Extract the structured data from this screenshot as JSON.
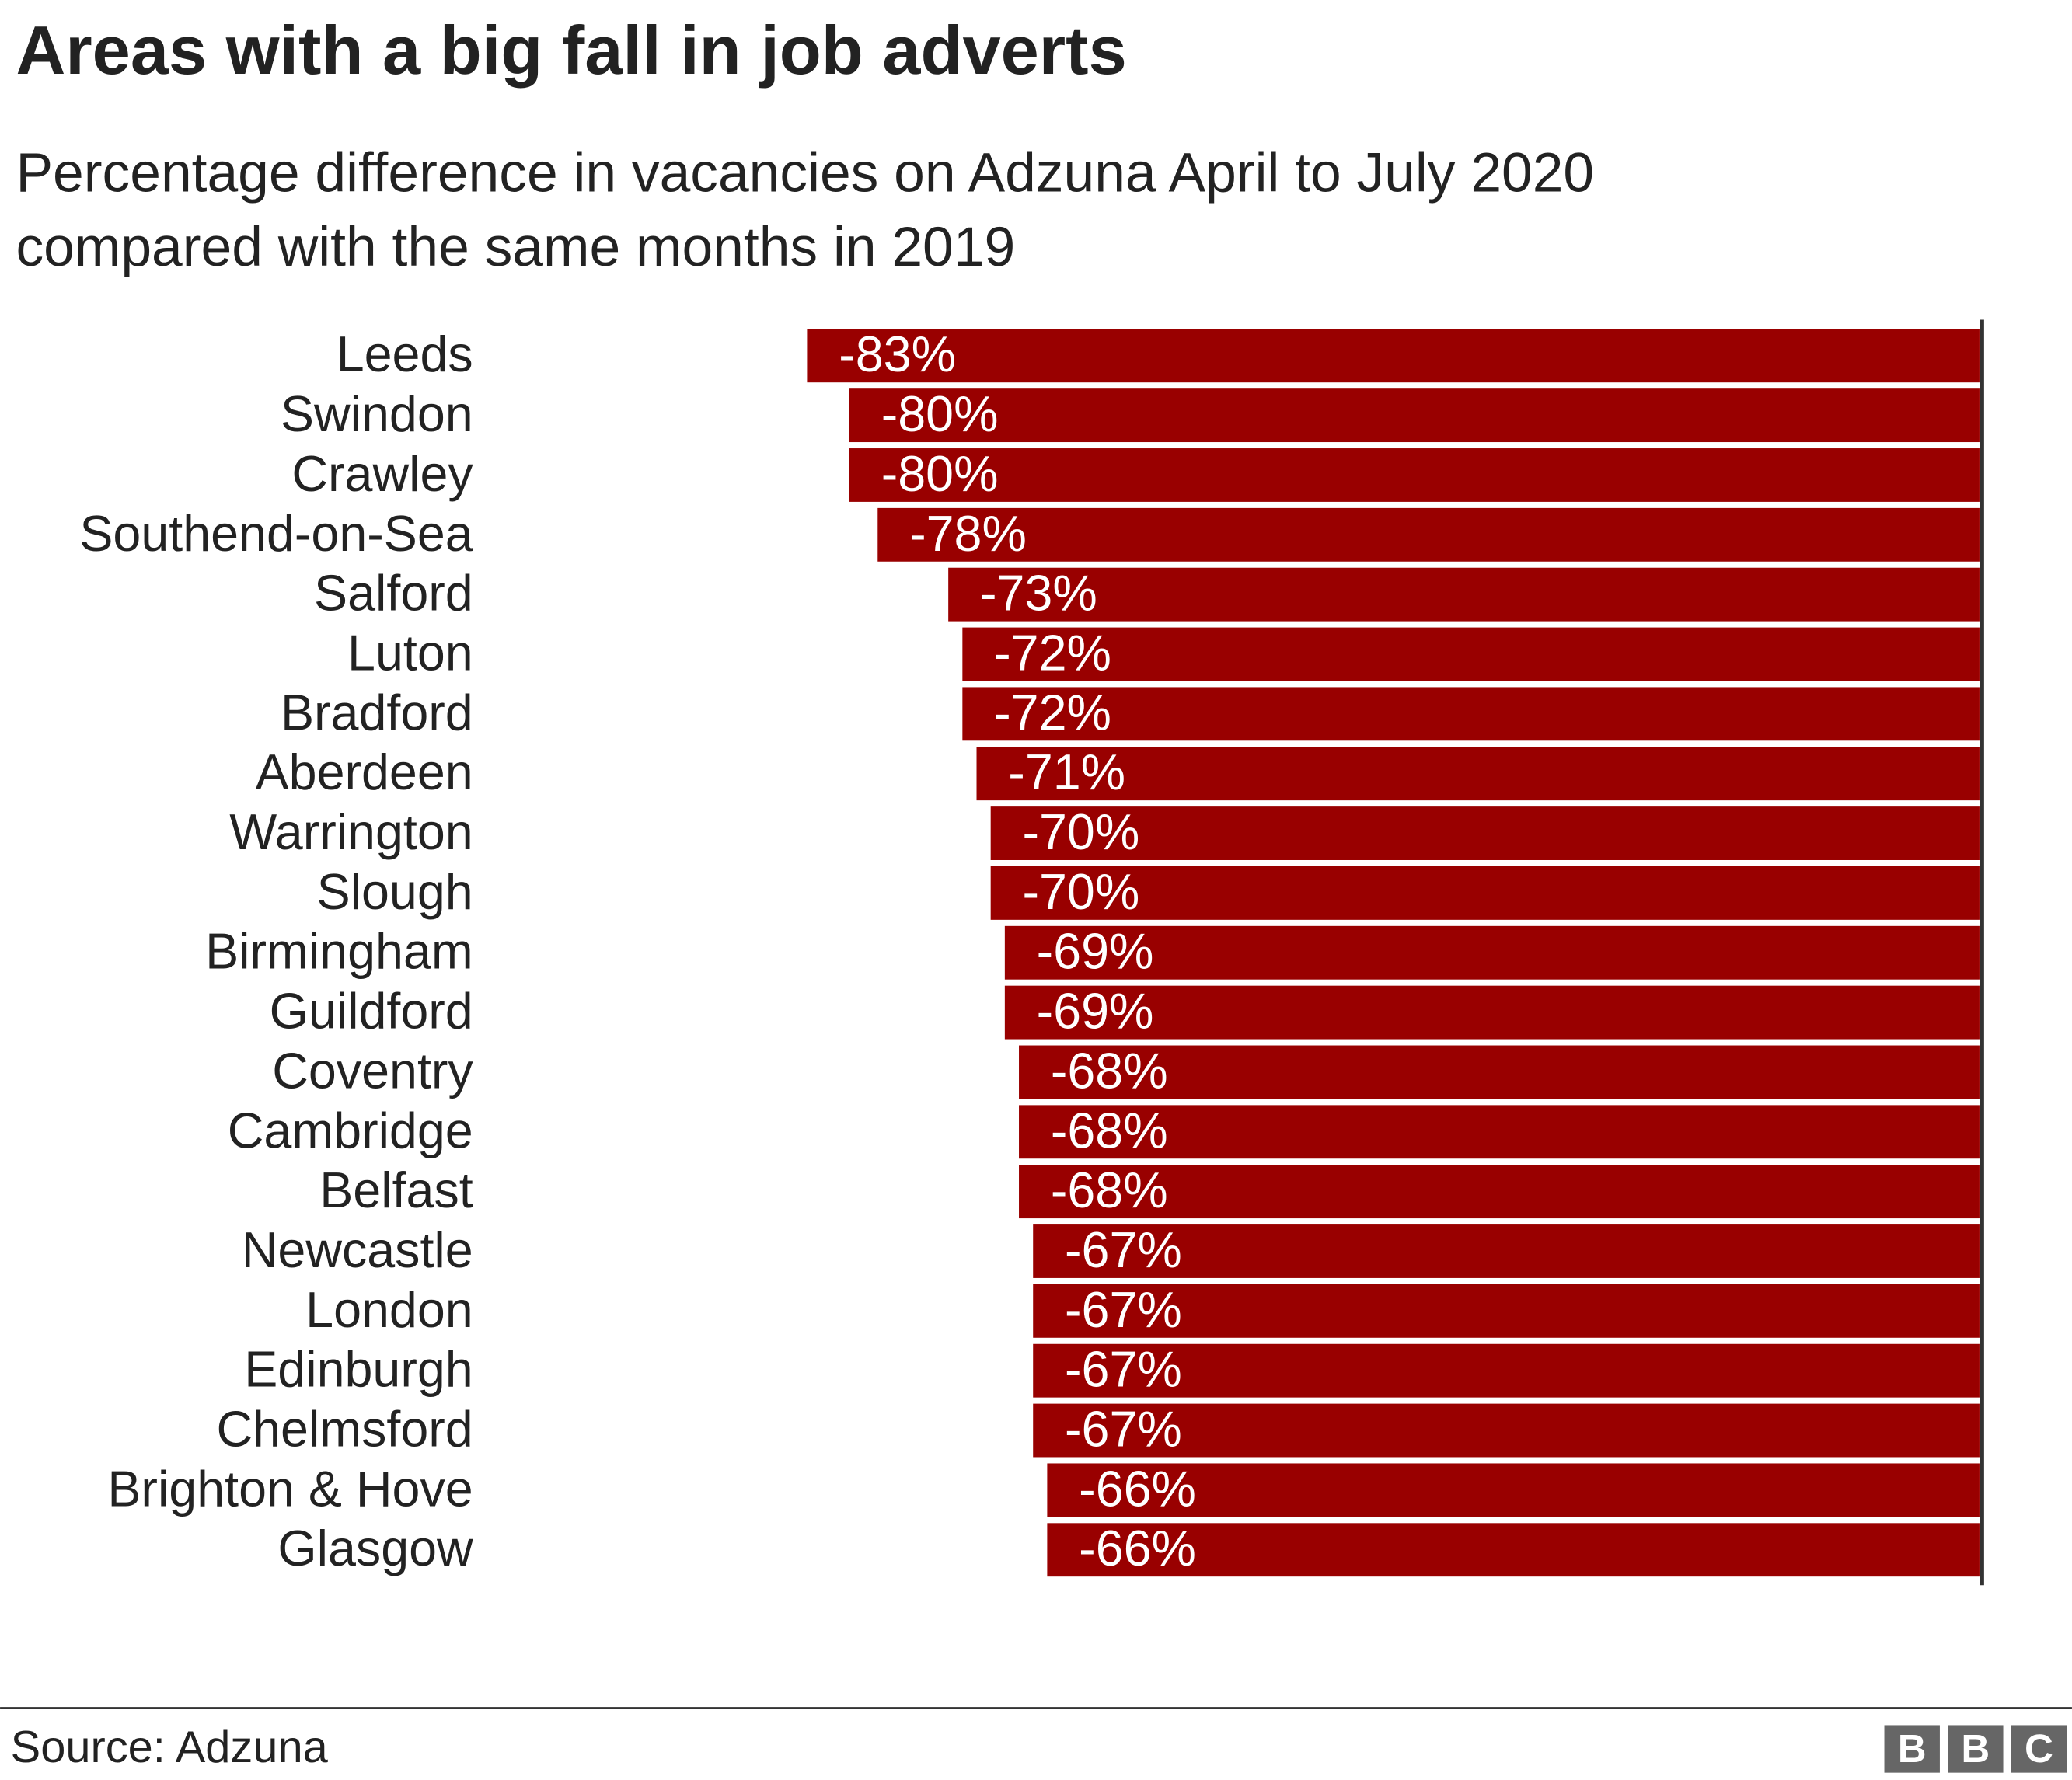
{
  "chart_data": {
    "type": "hbar",
    "title": "Areas with a big fall in job adverts",
    "subtitle": [
      "Percentage difference in vacancies on Adzuna April to July 2020",
      "compared with the same months in 2019"
    ],
    "categories": [
      "Leeds",
      "Swindon",
      "Crawley",
      "Southend-on-Sea",
      "Salford",
      "Luton",
      "Bradford",
      "Aberdeen",
      "Warrington",
      "Slough",
      "Birmingham",
      "Guildford",
      "Coventry",
      "Cambridge",
      "Belfast",
      "Newcastle",
      "London",
      "Edinburgh",
      "Chelmsford",
      "Brighton & Hove",
      "Glasgow"
    ],
    "values": [
      -83,
      -80,
      -80,
      -78,
      -73,
      -72,
      -72,
      -71,
      -70,
      -70,
      -69,
      -69,
      -68,
      -68,
      -68,
      -67,
      -67,
      -67,
      -67,
      -66,
      -66
    ],
    "value_labels": [
      "-83%",
      "-80%",
      "-80%",
      "-78%",
      "-73%",
      "-72%",
      "-72%",
      "-71%",
      "-70%",
      "-70%",
      "-69%",
      "-69%",
      "-68%",
      "-68%",
      "-68%",
      "-67%",
      "-67%",
      "-67%",
      "-67%",
      "-66%",
      "-66%"
    ],
    "color": "#990000",
    "xlim": [
      -100,
      0
    ],
    "source": "Source: Adzuna",
    "logo": [
      "B",
      "B",
      "C"
    ]
  }
}
